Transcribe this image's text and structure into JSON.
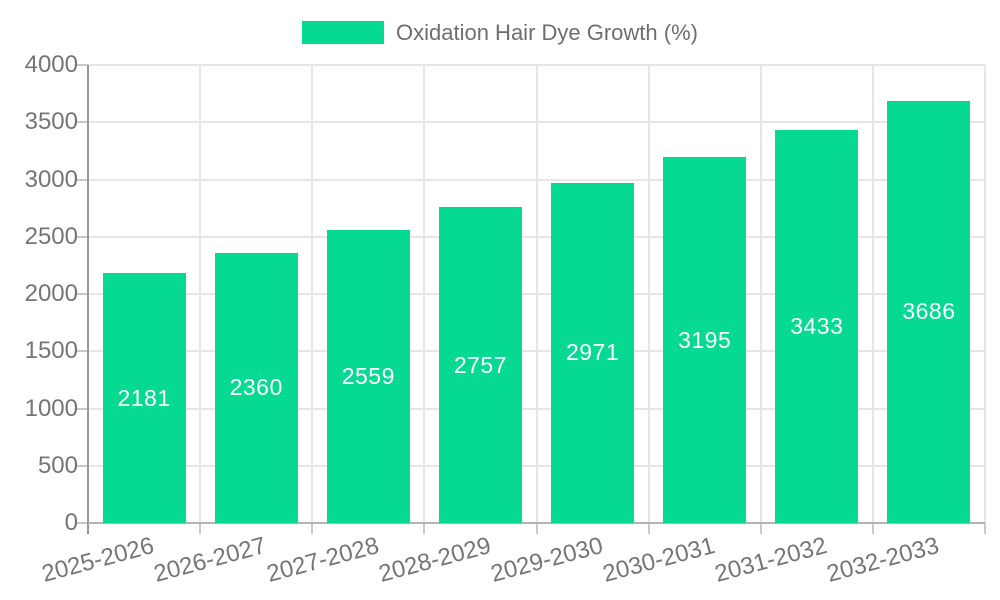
{
  "chart_data": {
    "type": "bar",
    "title": "Oxidation Hair Dye Growth (%)",
    "legend_label": "Oxidation Hair Dye Growth (%)",
    "legend_position": "top-center",
    "categories": [
      "2025-2026",
      "2026-2027",
      "2027-2028",
      "2028-2029",
      "2029-2030",
      "2030-2031",
      "2031-2032",
      "2032-2033"
    ],
    "values": [
      2181,
      2360,
      2559,
      2757,
      2971,
      3195,
      3433,
      3686
    ],
    "value_labels": [
      "2181",
      "2360",
      "2559",
      "2757",
      "2971",
      "3195",
      "3433",
      "3686"
    ],
    "xlabel": "",
    "ylabel": "",
    "ylim": [
      0,
      4000
    ],
    "ytick_step": 500,
    "ytick_labels": [
      "0",
      "500",
      "1000",
      "1500",
      "2000",
      "2500",
      "3000",
      "3500",
      "4000"
    ],
    "grid": true,
    "x_labels_rotation_deg": -15,
    "colors": {
      "bar": "#05D992",
      "bar_value_text": "#FFFFFF",
      "axis_text": "#757575",
      "legend_text": "#6E6E6E",
      "gridline": "#E6E6E6",
      "axis_line": "#979797",
      "tick": "#C9C9C9"
    }
  }
}
